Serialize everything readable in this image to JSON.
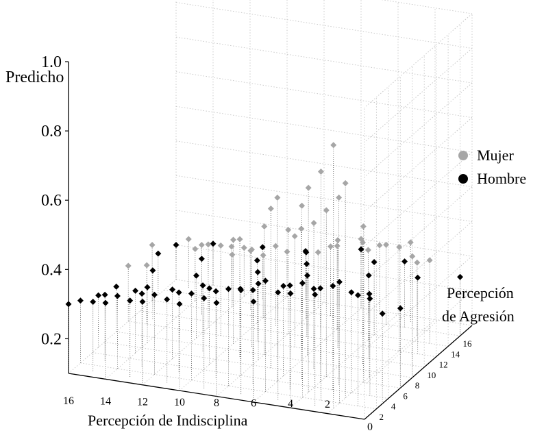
{
  "chart_data": {
    "type": "scatter",
    "projection": "3d",
    "zlabel": "Predicho",
    "xlabel": "Percepción de Indisciplina",
    "ylabel": [
      "Percepción",
      "de Agresión"
    ],
    "zlim": [
      0.1,
      1.0
    ],
    "z_ticks": [
      "1.0",
      "0.8",
      "0.6",
      "0.4",
      "0.2"
    ],
    "x_ticks": [
      "16",
      "14",
      "12",
      "10",
      "8",
      "6",
      "4",
      "2"
    ],
    "y_ticks": [
      "0",
      "2",
      "4",
      "6",
      "8",
      "10",
      "12",
      "14",
      "16"
    ],
    "grid": true,
    "legend_position": "right",
    "series": [
      {
        "name": "Mujer",
        "color": "#a6a6a6",
        "marker": "diamond",
        "points": [
          [
            2,
            1,
            0.86
          ],
          [
            2,
            3,
            0.72
          ],
          [
            3,
            2,
            0.76
          ],
          [
            4,
            3,
            0.69
          ],
          [
            3,
            5,
            0.64
          ],
          [
            2,
            6,
            0.55
          ],
          [
            4,
            6,
            0.58
          ],
          [
            5,
            5,
            0.6
          ],
          [
            6,
            4,
            0.63
          ],
          [
            5,
            7,
            0.52
          ],
          [
            7,
            6,
            0.56
          ],
          [
            6,
            8,
            0.48
          ],
          [
            8,
            8,
            0.47
          ],
          [
            9,
            7,
            0.44
          ],
          [
            7,
            10,
            0.42
          ],
          [
            10,
            9,
            0.4
          ],
          [
            8,
            12,
            0.4
          ],
          [
            11,
            10,
            0.36
          ],
          [
            9,
            13,
            0.33
          ],
          [
            12,
            11,
            0.34
          ],
          [
            3,
            9,
            0.45
          ],
          [
            5,
            11,
            0.41
          ],
          [
            4,
            13,
            0.36
          ],
          [
            6,
            14,
            0.34
          ],
          [
            2,
            15,
            0.31
          ],
          [
            7,
            16,
            0.3
          ],
          [
            10,
            14,
            0.28
          ],
          [
            13,
            13,
            0.3
          ],
          [
            11,
            15,
            0.27
          ],
          [
            8,
            17,
            0.26
          ],
          [
            12,
            17,
            0.24
          ],
          [
            14,
            15,
            0.25
          ],
          [
            6,
            18,
            0.3
          ],
          [
            10,
            18,
            0.23
          ],
          [
            15,
            17,
            0.24
          ],
          [
            16,
            14,
            0.26
          ],
          [
            13,
            18,
            0.22
          ],
          [
            9,
            9,
            0.38
          ],
          [
            4,
            16,
            0.33
          ],
          [
            5,
            18,
            0.29
          ],
          [
            3,
            17,
            0.33
          ],
          [
            1,
            14,
            0.34
          ],
          [
            12,
            15,
            0.25
          ],
          [
            14,
            18,
            0.22
          ],
          [
            2,
            12,
            0.4
          ],
          [
            15,
            10,
            0.27
          ],
          [
            16,
            10,
            0.26
          ],
          [
            0,
            8,
            0.45
          ]
        ]
      },
      {
        "name": "Hombre",
        "color": "#000000",
        "marker": "diamond",
        "points": [
          [
            0,
            3,
            0.36
          ],
          [
            1,
            2,
            0.42
          ],
          [
            2,
            2,
            0.45
          ],
          [
            3,
            1,
            0.42
          ],
          [
            1,
            4,
            0.38
          ],
          [
            3,
            4,
            0.4
          ],
          [
            4,
            2,
            0.43
          ],
          [
            5,
            3,
            0.4
          ],
          [
            5,
            1,
            0.41
          ],
          [
            6,
            2,
            0.42
          ],
          [
            7,
            1,
            0.4
          ],
          [
            7,
            3,
            0.37
          ],
          [
            8,
            2,
            0.38
          ],
          [
            9,
            1,
            0.36
          ],
          [
            9,
            3,
            0.35
          ],
          [
            10,
            2,
            0.35
          ],
          [
            11,
            1,
            0.34
          ],
          [
            11,
            3,
            0.33
          ],
          [
            12,
            2,
            0.33
          ],
          [
            13,
            1,
            0.32
          ],
          [
            13,
            3,
            0.31
          ],
          [
            14,
            2,
            0.31
          ],
          [
            15,
            1,
            0.3
          ],
          [
            15,
            3,
            0.29
          ],
          [
            16,
            2,
            0.28
          ],
          [
            16,
            0,
            0.3
          ],
          [
            14,
            0,
            0.32
          ],
          [
            12,
            0,
            0.34
          ],
          [
            10,
            0,
            0.35
          ],
          [
            8,
            0,
            0.37
          ],
          [
            6,
            0,
            0.39
          ],
          [
            4,
            0,
            0.43
          ],
          [
            2,
            4,
            0.39
          ],
          [
            4,
            5,
            0.37
          ],
          [
            6,
            5,
            0.36
          ],
          [
            8,
            4,
            0.35
          ],
          [
            10,
            5,
            0.32
          ],
          [
            12,
            5,
            0.3
          ],
          [
            14,
            5,
            0.28
          ],
          [
            16,
            5,
            0.25
          ],
          [
            0,
            6,
            0.33
          ],
          [
            2,
            7,
            0.34
          ],
          [
            5,
            7,
            0.33
          ],
          [
            8,
            7,
            0.32
          ],
          [
            11,
            7,
            0.29
          ],
          [
            14,
            7,
            0.26
          ],
          [
            16,
            8,
            0.23
          ],
          [
            6,
            9,
            0.33
          ],
          [
            3,
            10,
            0.34
          ],
          [
            9,
            10,
            0.3
          ],
          [
            12,
            9,
            0.28
          ],
          [
            15,
            11,
            0.24
          ],
          [
            1,
            12,
            0.32
          ],
          [
            7,
            12,
            0.31
          ],
          [
            10,
            13,
            0.28
          ],
          [
            13,
            13,
            0.26
          ],
          [
            4,
            14,
            0.31
          ],
          [
            8,
            15,
            0.29
          ],
          [
            16,
            15,
            0.22
          ],
          [
            3,
            16,
            0.29
          ],
          [
            11,
            17,
            0.25
          ],
          [
            6,
            18,
            0.27
          ],
          [
            14,
            18,
            0.22
          ],
          [
            9,
            18,
            0.24
          ],
          [
            0,
            16,
            0.27
          ],
          [
            16,
            18,
            0.2
          ]
        ]
      }
    ]
  }
}
